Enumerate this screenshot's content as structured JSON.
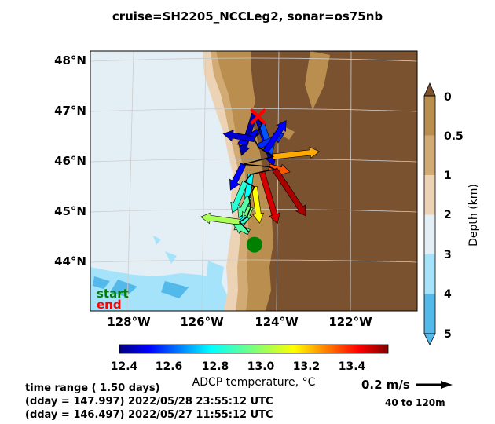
{
  "title": "cruise=SH2205_NCCLeg2,   sonar=os75nb",
  "chart_data": {
    "type": "map",
    "lat_ticks": [
      "48°N",
      "47°N",
      "46°N",
      "45°N",
      "44°N"
    ],
    "lon_ticks": [
      "128°W",
      "126°W",
      "124°W",
      "122°W"
    ],
    "depth_colorbar": {
      "label": "Depth (km)",
      "ticks": [
        "0",
        "0.5",
        "1",
        "2",
        "3",
        "4",
        "5"
      ],
      "colors": [
        "#7b5230",
        "#b98e4f",
        "#d2aa74",
        "#ecd3b6",
        "#e3eef5",
        "#a5e3fa",
        "#52b9ea"
      ]
    },
    "temperature_colorbar": {
      "label": "ADCP temperature, °C",
      "ticks": [
        "12.4",
        "12.6",
        "12.8",
        "13.0",
        "13.2",
        "13.4"
      ],
      "range": [
        12.35,
        13.55
      ],
      "colormap": "jet"
    },
    "start_marker": {
      "label": "start",
      "color": "#008000",
      "lat": 44.35,
      "lon": -124.6
    },
    "end_marker": {
      "label": "end",
      "color": "#ff0000",
      "lat": 46.9,
      "lon": -124.5
    },
    "vectors": [
      {
        "lat": 46.95,
        "lon": -124.6,
        "temp": 12.4,
        "u": -0.05,
        "v": -0.16
      },
      {
        "lat": 46.85,
        "lon": -124.5,
        "temp": 12.45,
        "u": 0.06,
        "v": -0.18
      },
      {
        "lat": 46.75,
        "lon": -124.4,
        "temp": 12.6,
        "u": 0.04,
        "v": -0.12
      },
      {
        "lat": 46.6,
        "lon": -124.5,
        "temp": 12.5,
        "u": -0.08,
        "v": -0.05
      },
      {
        "lat": 46.45,
        "lon": -124.6,
        "temp": 12.45,
        "u": -0.12,
        "v": 0.02
      },
      {
        "lat": 46.3,
        "lon": -124.5,
        "temp": 12.55,
        "u": 0.1,
        "v": 0.05
      },
      {
        "lat": 46.2,
        "lon": -124.3,
        "temp": 12.5,
        "u": 0.08,
        "v": 0.12
      },
      {
        "lat": 46.1,
        "lon": -124.1,
        "temp": 13.2,
        "u": 0.18,
        "v": 0.02
      },
      {
        "lat": 45.95,
        "lon": -124.9,
        "temp": 12.5,
        "u": -0.05,
        "v": -0.1
      },
      {
        "lat": 45.9,
        "lon": -124.2,
        "temp": 13.3,
        "u": 0.08,
        "v": -0.02
      },
      {
        "lat": 45.85,
        "lon": -124.05,
        "temp": 13.5,
        "u": 0.12,
        "v": -0.18
      },
      {
        "lat": 45.8,
        "lon": -124.4,
        "temp": 13.45,
        "u": 0.06,
        "v": -0.2
      },
      {
        "lat": 45.75,
        "lon": -124.7,
        "temp": 12.8,
        "u": -0.03,
        "v": -0.2
      },
      {
        "lat": 45.6,
        "lon": -124.85,
        "temp": 12.85,
        "u": -0.05,
        "v": -0.12
      },
      {
        "lat": 45.5,
        "lon": -124.6,
        "temp": 13.1,
        "u": 0.02,
        "v": -0.14
      },
      {
        "lat": 45.3,
        "lon": -124.75,
        "temp": 12.9,
        "u": -0.04,
        "v": -0.08
      },
      {
        "lat": 45.1,
        "lon": -124.7,
        "temp": 12.95,
        "u": -0.03,
        "v": -0.06
      },
      {
        "lat": 44.9,
        "lon": -124.8,
        "temp": 12.85,
        "u": -0.05,
        "v": -0.05
      },
      {
        "lat": 44.8,
        "lon": -125.0,
        "temp": 13.0,
        "u": -0.15,
        "v": 0.02
      },
      {
        "lat": 44.6,
        "lon": -124.75,
        "temp": 12.9,
        "u": -0.06,
        "v": 0.03
      }
    ]
  },
  "time_range": {
    "line1": "time range ( 1.50 days)",
    "line2": "(dday = 147.997) 2022/05/28 23:55:12 UTC",
    "line3": "(dday = 146.497) 2022/05/27 11:55:12 UTC"
  },
  "scale": {
    "speed": "0.2 m/s",
    "depth_range": "40 to 120m"
  }
}
